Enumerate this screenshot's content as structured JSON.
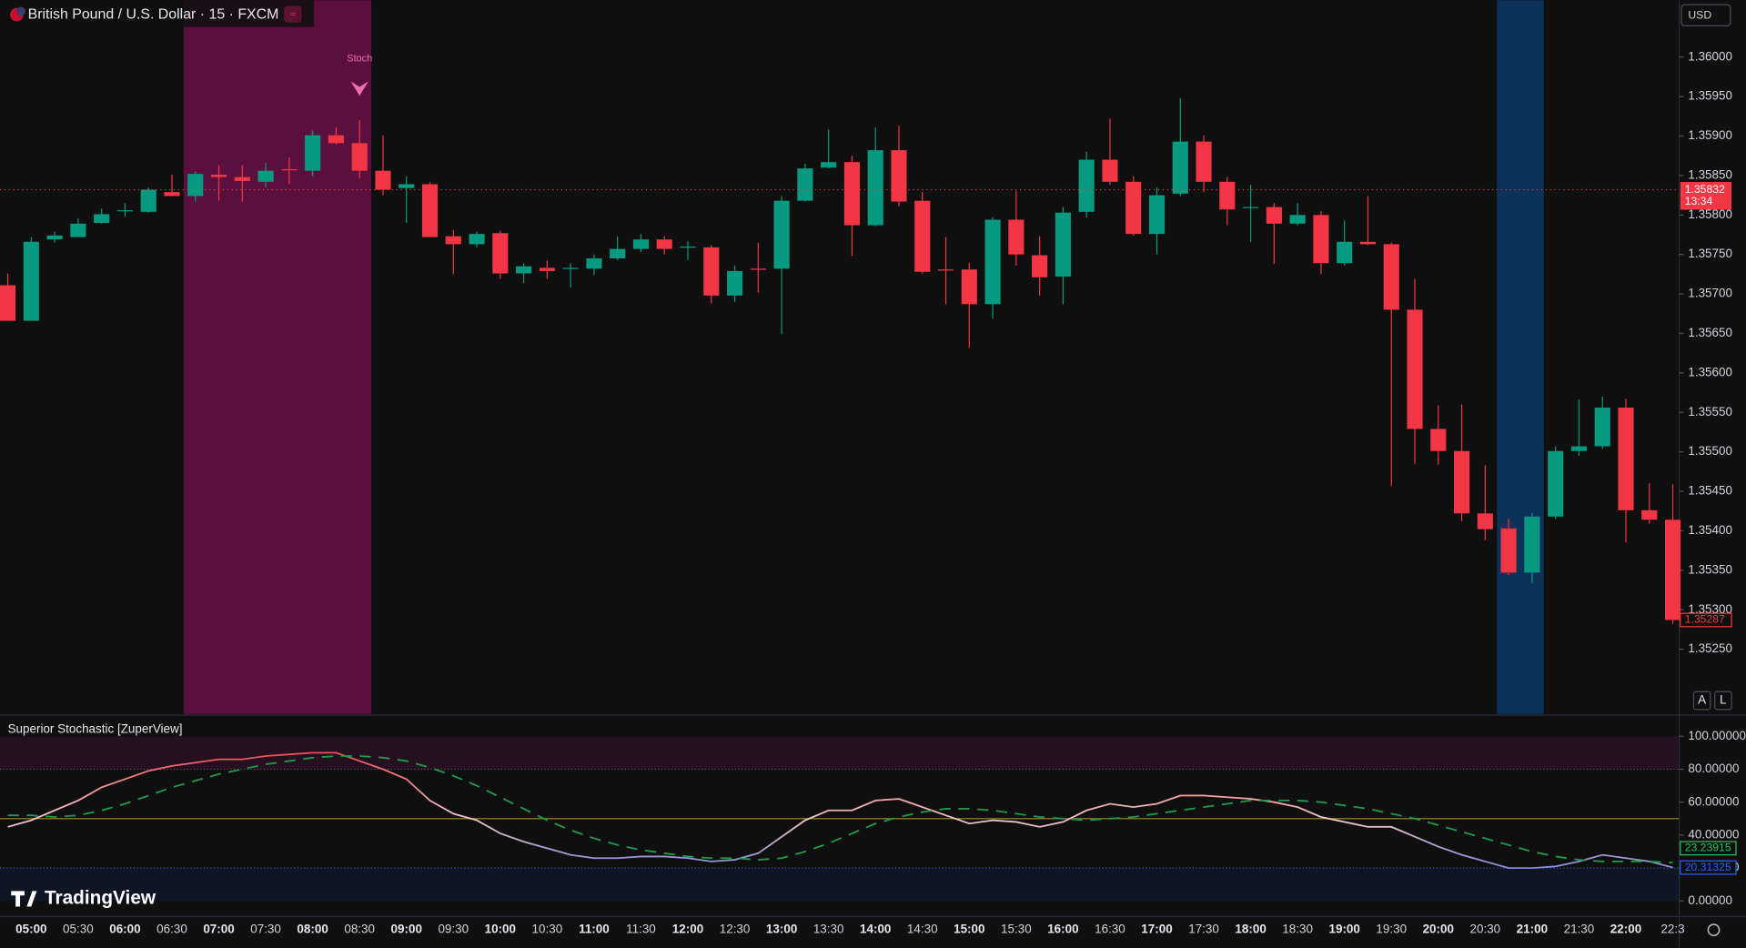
{
  "chart_data": [
    {
      "type": "candlestick",
      "title": "British Pound / U.S. Dollar · 15 · FXCM",
      "currency": "USD",
      "categories": [
        null,
        "05:00",
        null,
        "05:30",
        null,
        "06:00",
        null,
        "06:30",
        null,
        "07:00",
        null,
        "07:30",
        null,
        "08:00",
        null,
        "08:30",
        null,
        "09:00",
        null,
        "09:30",
        null,
        "10:00",
        null,
        "10:30",
        null,
        "11:00",
        null,
        "11:30",
        null,
        "12:00",
        null,
        "12:30",
        null,
        "13:00",
        null,
        "13:30",
        null,
        "14:00",
        null,
        "14:30",
        null,
        "15:00",
        null,
        "15:30",
        null,
        "16:00",
        null,
        "16:30",
        null,
        "17:00",
        null,
        "17:30",
        null,
        "18:00",
        null,
        "18:30",
        null,
        "19:00",
        null,
        "19:30",
        null,
        "20:00",
        null,
        "20:30",
        null,
        "21:00",
        null,
        "21:30",
        null,
        "22:00",
        null,
        "22:3"
      ],
      "open": [
        1.35711,
        1.35666,
        1.35769,
        1.35772,
        1.3579,
        1.35805,
        1.35804,
        1.35829,
        1.35824,
        1.35851,
        1.35848,
        1.35842,
        1.35858,
        1.35856,
        1.35901,
        1.35891,
        1.35856,
        1.35834,
        1.35839,
        1.35773,
        1.35763,
        1.35777,
        1.35726,
        1.35733,
        1.35732,
        1.35732,
        1.35745,
        1.35757,
        1.35769,
        1.35759,
        1.35759,
        1.35698,
        1.35732,
        1.35732,
        1.35818,
        1.3586,
        1.35867,
        1.35787,
        1.35882,
        1.35818,
        1.35731,
        1.35731,
        1.35687,
        1.35794,
        1.35749,
        1.35722,
        1.35804,
        1.3587,
        1.35842,
        1.35776,
        1.35827,
        1.35893,
        1.35842,
        1.3581,
        1.3581,
        1.35789,
        1.358,
        1.35739,
        1.35766,
        1.35763,
        1.3568,
        1.35529,
        1.35501,
        1.35422,
        1.35403,
        1.35347,
        1.35418,
        1.35501,
        1.35507,
        1.35556,
        1.35426,
        1.35414
      ],
      "high": [
        1.35726,
        1.35772,
        1.35779,
        1.35796,
        1.35808,
        1.35815,
        1.35835,
        1.35851,
        1.35855,
        1.35863,
        1.35863,
        1.35866,
        1.35873,
        1.35907,
        1.35911,
        1.3592,
        1.35901,
        1.35849,
        1.35842,
        1.35781,
        1.35779,
        1.3578,
        1.35739,
        1.35742,
        1.35739,
        1.3575,
        1.35773,
        1.35776,
        1.35773,
        1.35767,
        1.35762,
        1.35736,
        1.35765,
        1.35824,
        1.35865,
        1.35908,
        1.35875,
        1.35911,
        1.35913,
        1.35829,
        1.35772,
        1.35739,
        1.35797,
        1.35831,
        1.35773,
        1.3581,
        1.3588,
        1.35922,
        1.35849,
        1.35835,
        1.35948,
        1.35901,
        1.35848,
        1.35838,
        1.35815,
        1.35815,
        1.35805,
        1.35793,
        1.35824,
        1.35765,
        1.35719,
        1.35559,
        1.3556,
        1.35483,
        1.35415,
        1.35423,
        1.35507,
        1.35566,
        1.3557,
        1.35567,
        1.3546,
        1.35459
      ],
      "low": [
        1.35666,
        1.35666,
        1.35765,
        1.35772,
        1.35789,
        1.35798,
        1.35803,
        1.35824,
        1.35817,
        1.35818,
        1.35817,
        1.35835,
        1.35839,
        1.35849,
        1.35889,
        1.35846,
        1.35825,
        1.3579,
        1.35772,
        1.35725,
        1.35759,
        1.35719,
        1.35714,
        1.35719,
        1.35708,
        1.35724,
        1.35743,
        1.35753,
        1.3575,
        1.35743,
        1.35688,
        1.3569,
        1.35702,
        1.35649,
        1.35817,
        1.35859,
        1.35748,
        1.35786,
        1.35811,
        1.35726,
        1.35687,
        1.35632,
        1.35669,
        1.35736,
        1.35698,
        1.35687,
        1.35797,
        1.35838,
        1.35774,
        1.3575,
        1.35824,
        1.35829,
        1.35787,
        1.35766,
        1.35738,
        1.35787,
        1.35725,
        1.35736,
        1.35762,
        1.35457,
        1.35485,
        1.35484,
        1.35412,
        1.35388,
        1.35344,
        1.35334,
        1.35415,
        1.35495,
        1.35504,
        1.35385,
        1.35409,
        1.35282
      ],
      "close": [
        1.35666,
        1.35766,
        1.35774,
        1.35789,
        1.35801,
        1.35806,
        1.35832,
        1.35824,
        1.35852,
        1.35848,
        1.35843,
        1.35856,
        1.35857,
        1.35901,
        1.35891,
        1.35856,
        1.35832,
        1.35839,
        1.35772,
        1.35763,
        1.35776,
        1.35726,
        1.35735,
        1.35729,
        1.35733,
        1.35745,
        1.35757,
        1.35769,
        1.35757,
        1.3576,
        1.35698,
        1.35729,
        1.35731,
        1.35818,
        1.35859,
        1.35867,
        1.35787,
        1.35882,
        1.35817,
        1.35728,
        1.3573,
        1.35687,
        1.35794,
        1.3575,
        1.35721,
        1.35803,
        1.3587,
        1.35842,
        1.35776,
        1.35825,
        1.35893,
        1.35842,
        1.35807,
        1.3581,
        1.35789,
        1.358,
        1.35739,
        1.35766,
        1.35763,
        1.3568,
        1.35529,
        1.35501,
        1.35422,
        1.35402,
        1.35347,
        1.35418,
        1.35501,
        1.35507,
        1.35556,
        1.35426,
        1.35414,
        1.35287
      ],
      "up_color": "#089981",
      "down_color": "#f23645",
      "ylim": [
        1.35168,
        1.36072
      ],
      "yticks": [
        {
          "value": 1.36,
          "label": "1.36000"
        },
        {
          "value": 1.3595,
          "label": "1.35950"
        },
        {
          "value": 1.359,
          "label": "1.35900"
        },
        {
          "value": 1.3585,
          "label": "1.35850"
        },
        {
          "value": 1.358,
          "label": "1.35800"
        },
        {
          "value": 1.3575,
          "label": "1.35750"
        },
        {
          "value": 1.357,
          "label": "1.35700"
        },
        {
          "value": 1.3565,
          "label": "1.35650"
        },
        {
          "value": 1.356,
          "label": "1.35600"
        },
        {
          "value": 1.3555,
          "label": "1.35550"
        },
        {
          "value": 1.355,
          "label": "1.35500"
        },
        {
          "value": 1.3545,
          "label": "1.35450"
        },
        {
          "value": 1.354,
          "label": "1.35400"
        },
        {
          "value": 1.3535,
          "label": "1.35350"
        },
        {
          "value": 1.353,
          "label": "1.35300"
        },
        {
          "value": 1.3525,
          "label": "1.35250"
        }
      ],
      "reference_line": {
        "value": 1.35832,
        "countdown": "13:34",
        "color": "#f23645"
      },
      "bands": [
        {
          "start": 8,
          "end": 15,
          "color": "#5b0f3c"
        },
        {
          "start": 64,
          "end": 65,
          "color": "#0c3157"
        }
      ],
      "annotations": [
        {
          "text": "Stoch",
          "index": 15,
          "color": "#f06cb0"
        }
      ],
      "scale_buttons": [
        "A",
        "L"
      ]
    },
    {
      "type": "line",
      "title": "Superior Stochastic [ZuperView]",
      "brand": "TradingView",
      "series": [
        {
          "values": [
            45,
            49,
            55,
            61,
            69,
            74,
            79,
            82,
            84,
            86,
            86,
            88,
            89,
            90,
            90,
            85,
            80,
            74,
            61,
            53,
            49,
            41,
            36,
            32,
            28,
            26,
            26,
            27,
            27,
            26,
            24,
            25,
            29,
            39,
            49,
            55,
            55,
            61,
            62,
            57,
            52,
            47,
            49,
            48,
            45,
            48,
            55,
            59,
            57,
            59,
            64,
            64,
            63,
            62,
            60,
            57,
            51,
            48,
            45,
            45,
            39,
            33,
            28,
            24,
            20,
            20,
            21,
            24,
            28,
            26,
            24,
            20.31325
          ],
          "colors": [
            "#e8313f",
            "#f2c6c6",
            "#3a5fe8"
          ],
          "tag_color": "#2962ff"
        },
        {
          "values": [
            52,
            52,
            51,
            52,
            55,
            59,
            64,
            69,
            73,
            77,
            80,
            83,
            85,
            87,
            88,
            88,
            87,
            85,
            81,
            76,
            70,
            63,
            56,
            49,
            43,
            38,
            34,
            31,
            29,
            27,
            26,
            26,
            25,
            26,
            30,
            35,
            41,
            47,
            51,
            54,
            56,
            56,
            55,
            53,
            51,
            50,
            49,
            50,
            51,
            53,
            55,
            57,
            59,
            61,
            61,
            61,
            60,
            58,
            56,
            53,
            50,
            46,
            42,
            38,
            34,
            30,
            27,
            25,
            24,
            24,
            24,
            23.23915
          ],
          "color": "#1e9a4a",
          "dashed": true,
          "tag_color": "#22c55e"
        }
      ],
      "ylim": [
        -8.8,
        112.2
      ],
      "yticks": [
        {
          "value": 0,
          "label": "0.00000"
        },
        {
          "value": 20,
          "label": "20.00000"
        },
        {
          "value": 40,
          "label": "40.00000"
        },
        {
          "value": 60,
          "label": "60.00000"
        },
        {
          "value": 80,
          "label": "80.00000"
        },
        {
          "value": 100,
          "label": "100.00000"
        }
      ],
      "overbought": [
        80,
        100
      ],
      "overbought_color": "#24101f",
      "oversold": [
        0,
        20
      ],
      "oversold_color": "#0e1525",
      "midline": 50,
      "midline_color": "#a3901f"
    }
  ]
}
